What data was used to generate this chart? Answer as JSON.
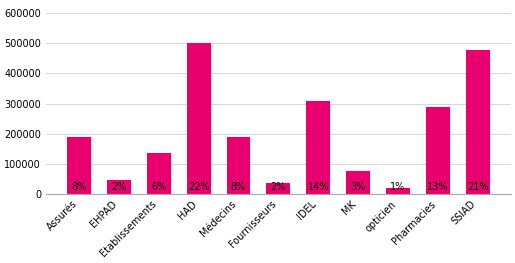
{
  "categories": [
    "Assurés",
    "EHPAD",
    "Etablissements",
    "HAD",
    "Médecins",
    "Fournisseurs",
    "IDEL",
    "MK",
    "opticien",
    "Pharmacies",
    "SSIAD"
  ],
  "values": [
    188000,
    46000,
    135000,
    500000,
    188000,
    37000,
    308000,
    78000,
    20000,
    290000,
    477000
  ],
  "percentages": [
    "8%",
    "2%",
    "6%",
    "22%",
    "8%",
    "2%",
    "14%",
    "3%",
    "1%",
    "13%",
    "21%"
  ],
  "bar_color": "#E8006E",
  "background_color": "#ffffff",
  "ylim": [
    0,
    630000
  ],
  "yticks": [
    0,
    100000,
    200000,
    300000,
    400000,
    500000,
    600000
  ],
  "ytick_labels": [
    "0",
    "100000",
    "200000",
    "300000",
    "400000",
    "500000",
    "600000"
  ],
  "grid_color": "#d0d0d0",
  "font_size_ticks": 7,
  "font_size_pct": 7
}
